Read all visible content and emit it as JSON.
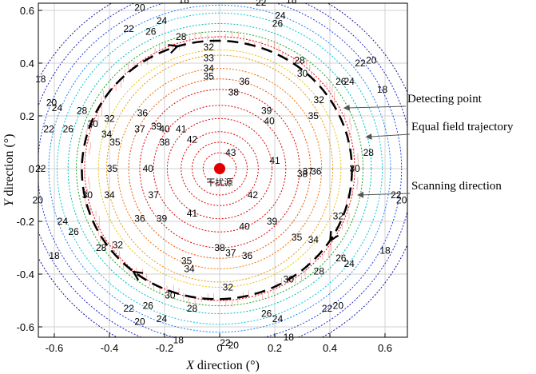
{
  "chart_data": {
    "type": "contour",
    "xlabel_var": "X",
    "xlabel_rest": " direction (°)",
    "ylabel_var": "Y",
    "ylabel_rest": " direction (°)",
    "xlim": [
      -0.67,
      0.7
    ],
    "ylim": [
      -0.67,
      0.67
    ],
    "x_ticks": [
      -0.6,
      -0.4,
      -0.2,
      0,
      0.2,
      0.4,
      0.6
    ],
    "x_tick_labels": [
      "-0.6",
      "-0.4",
      "-0.2",
      "0",
      "0.2",
      "0.4",
      "0.6"
    ],
    "y_ticks": [
      -0.6,
      -0.4,
      -0.2,
      0,
      0.2,
      0.4,
      0.6
    ],
    "y_tick_labels": [
      "-0.6",
      "-0.4",
      "-0.2",
      "0",
      "0.2",
      "0.4",
      "0.6"
    ],
    "grid": true,
    "source": {
      "x": 0,
      "y": 0,
      "label": "干扰源",
      "color": "#e00000"
    },
    "contours": [
      {
        "level": 43,
        "rx": 0.06,
        "ry": 0.06,
        "color": "#e00000"
      },
      {
        "level": 42,
        "rx": 0.1,
        "ry": 0.1,
        "color": "#e00000"
      },
      {
        "level": 41,
        "rx": 0.14,
        "ry": 0.14,
        "color": "#e00000"
      },
      {
        "level": 40,
        "rx": 0.19,
        "ry": 0.19,
        "color": "#e00000"
      },
      {
        "level": 39,
        "rx": 0.24,
        "ry": 0.24,
        "color": "#e00000"
      },
      {
        "level": 38,
        "rx": 0.29,
        "ry": 0.3,
        "color": "#e00000"
      },
      {
        "level": 37,
        "rx": 0.33,
        "ry": 0.34,
        "color": "#e65000"
      },
      {
        "level": 36,
        "rx": 0.37,
        "ry": 0.38,
        "color": "#f07000"
      },
      {
        "level": 35,
        "rx": 0.41,
        "ry": 0.43,
        "color": "#f09000"
      },
      {
        "level": 34,
        "rx": 0.44,
        "ry": 0.45,
        "color": "#e8c000"
      },
      {
        "level": 32,
        "rx": 0.49,
        "ry": 0.5,
        "color": "#e00000"
      },
      {
        "level": 30,
        "rx": 0.52,
        "ry": 0.52,
        "color": "#1ea01e"
      },
      {
        "level": 28,
        "rx": 0.55,
        "ry": 0.55,
        "color": "#00b8b8"
      },
      {
        "level": 26,
        "rx": 0.59,
        "ry": 0.59,
        "color": "#00c8e0"
      },
      {
        "level": 24,
        "rx": 0.62,
        "ry": 0.62,
        "color": "#2080ff"
      },
      {
        "level": 22,
        "rx": 0.66,
        "ry": 0.66,
        "color": "#2040e0"
      },
      {
        "level": 20,
        "rx": 0.7,
        "ry": 0.7,
        "color": "#2020c0"
      },
      {
        "level": 18,
        "rx": 0.74,
        "ry": 0.74,
        "color": "#1010a0"
      }
    ],
    "contour_labels": [
      {
        "text": "43",
        "x": 0.04,
        "y": 0.06
      },
      {
        "text": "42",
        "x": -0.1,
        "y": 0.11
      },
      {
        "text": "42",
        "x": 0.12,
        "y": -0.1
      },
      {
        "text": "41",
        "x": -0.14,
        "y": 0.15
      },
      {
        "text": "41",
        "x": 0.2,
        "y": 0.03
      },
      {
        "text": "41",
        "x": -0.1,
        "y": -0.17
      },
      {
        "text": "40",
        "x": -0.2,
        "y": 0.15
      },
      {
        "text": "40",
        "x": 0.18,
        "y": 0.18
      },
      {
        "text": "40",
        "x": 0.09,
        "y": -0.22
      },
      {
        "text": "40",
        "x": -0.26,
        "y": 0.0
      },
      {
        "text": "39",
        "x": -0.23,
        "y": 0.16
      },
      {
        "text": "39",
        "x": 0.17,
        "y": 0.22
      },
      {
        "text": "39",
        "x": -0.21,
        "y": -0.19
      },
      {
        "text": "39",
        "x": 0.19,
        "y": -0.2
      },
      {
        "text": "38",
        "x": 0.05,
        "y": 0.29
      },
      {
        "text": "38",
        "x": -0.2,
        "y": 0.1
      },
      {
        "text": "38",
        "x": 0.0,
        "y": -0.3
      },
      {
        "text": "38",
        "x": 0.3,
        "y": -0.02
      },
      {
        "text": "37",
        "x": -0.29,
        "y": 0.15
      },
      {
        "text": "37",
        "x": -0.24,
        "y": -0.1
      },
      {
        "text": "37",
        "x": 0.04,
        "y": -0.32
      },
      {
        "text": "37",
        "x": 0.32,
        "y": -0.01
      },
      {
        "text": "36",
        "x": 0.09,
        "y": 0.33
      },
      {
        "text": "36",
        "x": -0.28,
        "y": 0.21
      },
      {
        "text": "36",
        "x": -0.29,
        "y": -0.19
      },
      {
        "text": "36",
        "x": 0.1,
        "y": -0.33
      },
      {
        "text": "36",
        "x": 0.35,
        "y": -0.01
      },
      {
        "text": "35",
        "x": -0.04,
        "y": 0.35
      },
      {
        "text": "35",
        "x": -0.38,
        "y": 0.1
      },
      {
        "text": "35",
        "x": -0.39,
        "y": 0.0
      },
      {
        "text": "35",
        "x": -0.12,
        "y": -0.35
      },
      {
        "text": "35",
        "x": 0.28,
        "y": -0.26
      },
      {
        "text": "35",
        "x": 0.34,
        "y": 0.2
      },
      {
        "text": "34",
        "x": -0.04,
        "y": 0.38
      },
      {
        "text": "34",
        "x": -0.41,
        "y": 0.13
      },
      {
        "text": "34",
        "x": -0.4,
        "y": -0.1
      },
      {
        "text": "34",
        "x": -0.11,
        "y": -0.38
      },
      {
        "text": "34",
        "x": 0.34,
        "y": -0.27
      },
      {
        "text": "33",
        "x": -0.04,
        "y": 0.42
      },
      {
        "text": "32",
        "x": -0.04,
        "y": 0.46
      },
      {
        "text": "32",
        "x": -0.4,
        "y": 0.19
      },
      {
        "text": "32",
        "x": -0.37,
        "y": -0.29
      },
      {
        "text": "32",
        "x": 0.03,
        "y": -0.45
      },
      {
        "text": "32",
        "x": 0.43,
        "y": -0.18
      },
      {
        "text": "32",
        "x": 0.36,
        "y": 0.26
      },
      {
        "text": "30",
        "x": 0.3,
        "y": 0.36
      },
      {
        "text": "30",
        "x": -0.46,
        "y": 0.17
      },
      {
        "text": "30",
        "x": -0.48,
        "y": -0.1
      },
      {
        "text": "30",
        "x": -0.18,
        "y": -0.48
      },
      {
        "text": "30",
        "x": 0.25,
        "y": -0.42
      },
      {
        "text": "30",
        "x": 0.49,
        "y": 0.0
      },
      {
        "text": "28",
        "x": -0.14,
        "y": 0.5
      },
      {
        "text": "28",
        "x": 0.29,
        "y": 0.41
      },
      {
        "text": "28",
        "x": -0.5,
        "y": 0.22
      },
      {
        "text": "28",
        "x": -0.43,
        "y": -0.3
      },
      {
        "text": "28",
        "x": -0.1,
        "y": -0.53
      },
      {
        "text": "28",
        "x": 0.36,
        "y": -0.39
      },
      {
        "text": "28",
        "x": 0.54,
        "y": 0.06
      },
      {
        "text": "26",
        "x": -0.25,
        "y": 0.52
      },
      {
        "text": "26",
        "x": -0.55,
        "y": 0.15
      },
      {
        "text": "26",
        "x": -0.53,
        "y": -0.24
      },
      {
        "text": "26",
        "x": -0.26,
        "y": -0.52
      },
      {
        "text": "26",
        "x": 0.17,
        "y": -0.55
      },
      {
        "text": "26",
        "x": 0.44,
        "y": -0.34
      },
      {
        "text": "26",
        "x": 0.44,
        "y": 0.33
      },
      {
        "text": "26",
        "x": 0.21,
        "y": 0.55
      },
      {
        "text": "24",
        "x": -0.21,
        "y": 0.56
      },
      {
        "text": "24",
        "x": -0.59,
        "y": 0.23
      },
      {
        "text": "24",
        "x": -0.57,
        "y": -0.2
      },
      {
        "text": "24",
        "x": -0.21,
        "y": -0.57
      },
      {
        "text": "24",
        "x": 0.21,
        "y": -0.57
      },
      {
        "text": "24",
        "x": 0.47,
        "y": -0.36
      },
      {
        "text": "24",
        "x": 0.47,
        "y": 0.33
      },
      {
        "text": "24",
        "x": 0.22,
        "y": 0.58
      },
      {
        "text": "22",
        "x": -0.33,
        "y": 0.53
      },
      {
        "text": "22",
        "x": -0.62,
        "y": 0.15
      },
      {
        "text": "22",
        "x": -0.65,
        "y": 0.0
      },
      {
        "text": "22",
        "x": -0.33,
        "y": -0.53
      },
      {
        "text": "22",
        "x": 0.02,
        "y": -0.66
      },
      {
        "text": "22",
        "x": 0.39,
        "y": -0.53
      },
      {
        "text": "22",
        "x": 0.51,
        "y": 0.4
      },
      {
        "text": "22",
        "x": 0.15,
        "y": 0.63
      },
      {
        "text": "22",
        "x": 0.64,
        "y": -0.1
      },
      {
        "text": "20",
        "x": -0.29,
        "y": 0.61
      },
      {
        "text": "20",
        "x": -0.61,
        "y": 0.25
      },
      {
        "text": "20",
        "x": -0.66,
        "y": -0.12
      },
      {
        "text": "20",
        "x": -0.29,
        "y": -0.58
      },
      {
        "text": "20",
        "x": 0.05,
        "y": -0.67
      },
      {
        "text": "20",
        "x": 0.43,
        "y": -0.52
      },
      {
        "text": "20",
        "x": 0.55,
        "y": 0.41
      },
      {
        "text": "20",
        "x": 0.66,
        "y": -0.12
      },
      {
        "text": "18",
        "x": -0.13,
        "y": 0.64
      },
      {
        "text": "18",
        "x": -0.65,
        "y": 0.34
      },
      {
        "text": "18",
        "x": -0.6,
        "y": -0.33
      },
      {
        "text": "18",
        "x": -0.15,
        "y": -0.65
      },
      {
        "text": "18",
        "x": 0.25,
        "y": -0.64
      },
      {
        "text": "18",
        "x": 0.6,
        "y": -0.31
      },
      {
        "text": "18",
        "x": 0.59,
        "y": 0.3
      },
      {
        "text": "18",
        "x": 0.26,
        "y": 0.64
      }
    ],
    "scan_trajectory": {
      "rx": 0.49,
      "ry": 0.49,
      "cx": -0.01,
      "cy": -0.005,
      "color": "#000000",
      "style": "dashed",
      "arrow_angles_deg": [
        -30,
        110,
        235
      ]
    },
    "annotations": [
      {
        "text": "Detecting point",
        "target_x": 0.44,
        "target_y": 0.23
      },
      {
        "text": "Equal field trajectory",
        "target_x": 0.52,
        "target_y": 0.12
      },
      {
        "text": "Scanning direction",
        "target_x": 0.49,
        "target_y": -0.1
      }
    ]
  }
}
